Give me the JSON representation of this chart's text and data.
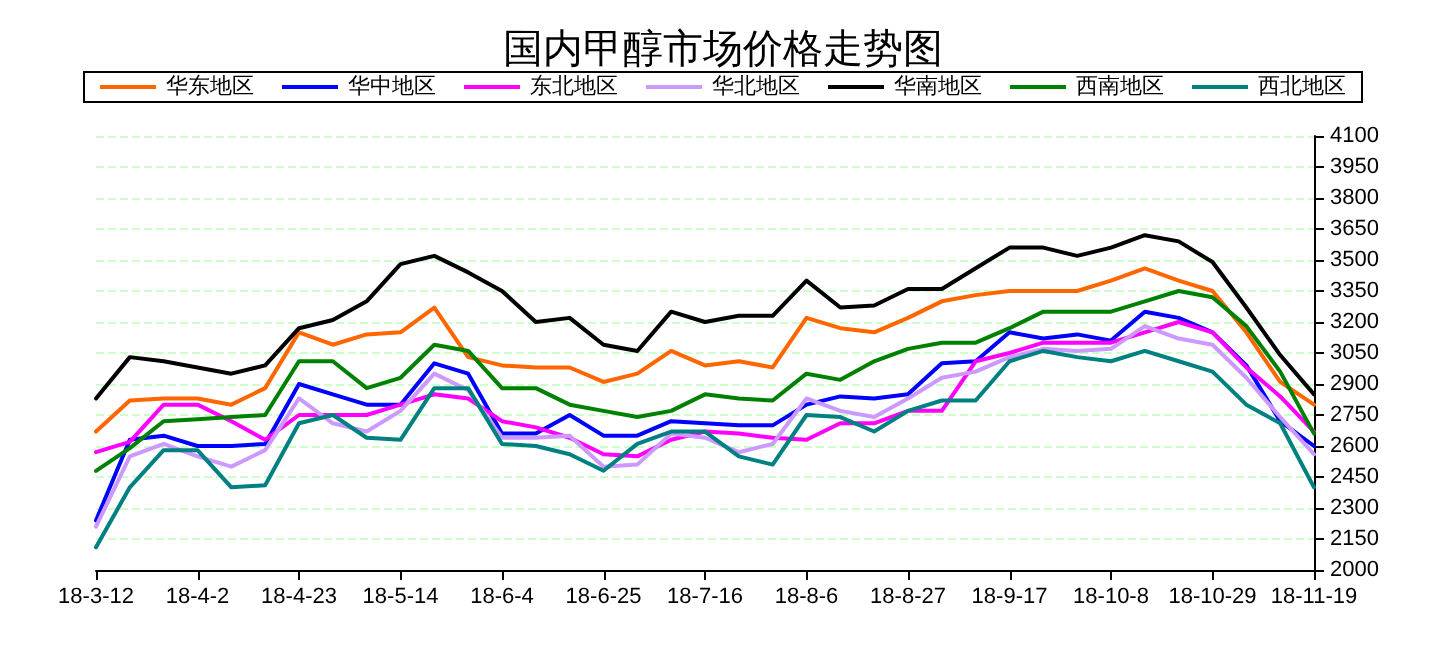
{
  "chart_data": {
    "type": "line",
    "title": "国内甲醇市场价格走势图",
    "x": [
      "--03-12",
      "--03-19",
      "--03-26",
      "--04-02",
      "--04-09",
      "--04-16",
      "--04-23",
      "--04-30",
      "--05-07",
      "--05-14",
      "--05-21",
      "--05-28",
      "--06-04",
      "--06-11",
      "--06-18",
      "--06-25",
      "--07-02",
      "--07-09",
      "--07-16",
      "--07-23",
      "--07-30",
      "--08-06",
      "--08-13",
      "--08-20",
      "--08-27",
      "--09-03",
      "--09-10",
      "--09-17",
      "--09-24",
      "--10-01",
      "--10-08",
      "--10-15",
      "--10-22",
      "--10-29",
      "--11-05",
      "--11-12",
      "--11-19"
    ],
    "series": [
      {
        "name": "华东地区",
        "color": "#ff6600",
        "values": [
          2670,
          2820,
          2830,
          2830,
          2800,
          2880,
          3150,
          3090,
          3140,
          3150,
          3270,
          3030,
          2990,
          2980,
          2980,
          2910,
          2950,
          3060,
          2990,
          3010,
          2980,
          3220,
          3170,
          3150,
          3220,
          3300,
          3330,
          3350,
          3350,
          3350,
          3400,
          3460,
          3400,
          3350,
          3150,
          2910,
          2800
        ]
      },
      {
        "name": "华中地区",
        "color": "#0000ff",
        "values": [
          2240,
          2630,
          2650,
          2600,
          2600,
          2610,
          2900,
          2850,
          2800,
          2800,
          3000,
          2950,
          2660,
          2660,
          2750,
          2650,
          2650,
          2720,
          2710,
          2700,
          2700,
          2800,
          2840,
          2830,
          2850,
          3000,
          3010,
          3150,
          3120,
          3140,
          3110,
          3250,
          3220,
          3150,
          2990,
          2720,
          2600
        ]
      },
      {
        "name": "东北地区",
        "color": "#ff00ff",
        "values": [
          2570,
          2620,
          2800,
          2800,
          2720,
          2630,
          2750,
          2750,
          2750,
          2800,
          2850,
          2830,
          2720,
          2690,
          2640,
          2560,
          2550,
          2630,
          2670,
          2660,
          2640,
          2630,
          2710,
          2710,
          2770,
          2770,
          3010,
          3050,
          3100,
          3100,
          3100,
          3150,
          3200,
          3150,
          2980,
          2840,
          2670
        ]
      },
      {
        "name": "华北地区",
        "color": "#cc99ff",
        "values": [
          2210,
          2550,
          2610,
          2550,
          2500,
          2580,
          2830,
          2710,
          2670,
          2770,
          2950,
          2870,
          2640,
          2640,
          2650,
          2500,
          2510,
          2660,
          2640,
          2570,
          2610,
          2830,
          2770,
          2740,
          2830,
          2930,
          2960,
          3030,
          3070,
          3060,
          3070,
          3180,
          3120,
          3090,
          2930,
          2740,
          2560
        ]
      },
      {
        "name": "华南地区",
        "color": "#000000",
        "values": [
          2830,
          3030,
          3010,
          2980,
          2950,
          2990,
          3170,
          3210,
          3300,
          3480,
          3520,
          3440,
          3350,
          3200,
          3220,
          3090,
          3060,
          3250,
          3200,
          3230,
          3230,
          3400,
          3270,
          3280,
          3360,
          3360,
          3460,
          3560,
          3560,
          3520,
          3560,
          3620,
          3590,
          3490,
          3270,
          3040,
          2850
        ]
      },
      {
        "name": "西南地区",
        "color": "#008000",
        "values": [
          2480,
          2590,
          2720,
          2730,
          2740,
          2750,
          3010,
          3010,
          2880,
          2930,
          3090,
          3060,
          2880,
          2880,
          2800,
          2770,
          2740,
          2770,
          2850,
          2830,
          2820,
          2950,
          2920,
          3010,
          3070,
          3100,
          3100,
          3170,
          3250,
          3250,
          3250,
          3300,
          3350,
          3320,
          3180,
          2960,
          2660
        ]
      },
      {
        "name": "西北地区",
        "color": "#008080",
        "values": [
          2110,
          2400,
          2580,
          2580,
          2400,
          2410,
          2710,
          2750,
          2640,
          2630,
          2880,
          2880,
          2610,
          2600,
          2560,
          2480,
          2610,
          2670,
          2670,
          2550,
          2510,
          2750,
          2740,
          2670,
          2770,
          2820,
          2820,
          3010,
          3060,
          3030,
          3010,
          3060,
          3010,
          2960,
          2800,
          2710,
          2400
        ]
      }
    ],
    "xlim": [
      "--03-12",
      "--11-19"
    ],
    "xticks": [
      {
        "value": "--03-12",
        "label": "18-3-12"
      },
      {
        "value": "--04-02",
        "label": "18-4-2"
      },
      {
        "value": "--04-23",
        "label": "18-4-23"
      },
      {
        "value": "--05-14",
        "label": "18-5-14"
      },
      {
        "value": "--06-04",
        "label": "18-6-4"
      },
      {
        "value": "--06-25",
        "label": "18-6-25"
      },
      {
        "value": "--07-16",
        "label": "18-7-16"
      },
      {
        "value": "--08-06",
        "label": "18-8-6"
      },
      {
        "value": "--08-27",
        "label": "18-8-27"
      },
      {
        "value": "--09-17",
        "label": "18-9-17"
      },
      {
        "value": "--10-08",
        "label": "18-10-8"
      },
      {
        "value": "--10-29",
        "label": "18-10-29"
      },
      {
        "value": "--11-19",
        "label": "18-11-19"
      }
    ],
    "ylim": [
      2000,
      4100
    ],
    "yticks": [
      2000,
      2150,
      2300,
      2450,
      2600,
      2750,
      2900,
      3050,
      3200,
      3350,
      3500,
      3650,
      3800,
      3950,
      4100
    ],
    "grid": "y",
    "legend": "top",
    "marker": "none",
    "line_style": "solid"
  }
}
